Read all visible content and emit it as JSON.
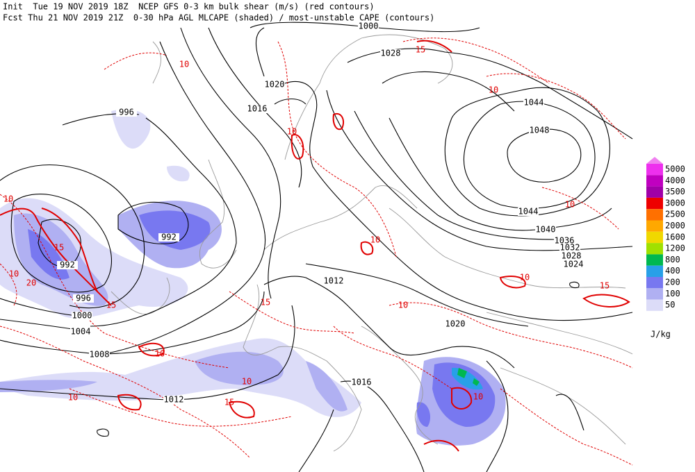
{
  "header": {
    "line1": "Init  Tue 19 NOV 2019 18Z  NCEP GFS 0-3 km bulk shear (m/s) (red contours)",
    "line2": "Fcst Thu 21 NOV 2019 21Z  0-30 hPa AGL MLCAPE (shaded) / most-unstable CAPE (contours)"
  },
  "legend": {
    "levels": [
      {
        "label": "5000",
        "color": "#ee30ee"
      },
      {
        "label": "4000",
        "color": "#c000c0"
      },
      {
        "label": "3500",
        "color": "#a000a8"
      },
      {
        "label": "3000",
        "color": "#ee0000"
      },
      {
        "label": "2500",
        "color": "#ff7000"
      },
      {
        "label": "2000",
        "color": "#ffa800"
      },
      {
        "label": "1600",
        "color": "#f0d800"
      },
      {
        "label": "1200",
        "color": "#a0e000"
      },
      {
        "label": "800",
        "color": "#00b850"
      },
      {
        "label": "400",
        "color": "#28a0e8"
      },
      {
        "label": "200",
        "color": "#7878f0"
      },
      {
        "label": "100",
        "color": "#b0b0f2"
      },
      {
        "label": "50",
        "color": "#dcdcf8"
      }
    ],
    "top_color": "#f080f0",
    "unit": "J/kg"
  },
  "pressure_labels": [
    "1000",
    "1028",
    "1020",
    "1016",
    "996",
    "1048",
    "1044",
    "992",
    "992",
    "996",
    "1000",
    "1004",
    "1008",
    "1012",
    "1044",
    "1040",
    "1036",
    "1032",
    "1028",
    "1024",
    "1020",
    "1016",
    "1012"
  ],
  "shear_labels": [
    "15",
    "10",
    "10",
    "10",
    "15",
    "20",
    "15",
    "10",
    "15",
    "10",
    "10",
    "10",
    "15",
    "10",
    "10",
    "10",
    "10",
    "15",
    "10",
    "10"
  ]
}
